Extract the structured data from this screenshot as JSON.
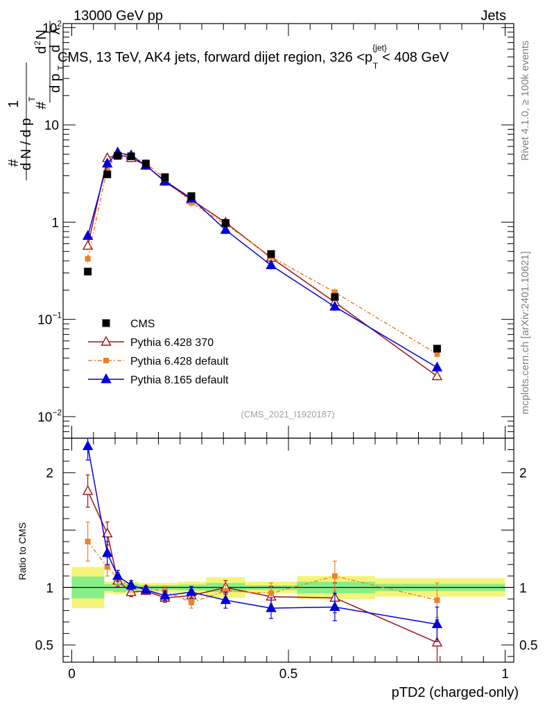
{
  "header": {
    "beam": "13000 GeV pp",
    "category": "Jets",
    "side_label_top": "Rivet 4.1.0, ≥ 100k events",
    "side_label_bottom": "mcplots.cern.ch [arXiv:2401.10621]",
    "analysis_id": "(CMS_2021_I1920187)"
  },
  "chart_data": {
    "type": "line",
    "title_parts": [
      "CMS, 13 TeV, AK4 jets, forward dijet region, 326 <p",
      "{jet}",
      "T",
      "< 408 GeV"
    ],
    "xlabel": "pTD2 (charged-only)",
    "ylabel_main": "1/(dN/dp_T) d²N/(dp_T dλ)",
    "ylabel_ratio": "Ratio to CMS",
    "xlim": [
      -0.02,
      1.02
    ],
    "ylim_main": [
      0.006,
      110
    ],
    "ylim_ratio": [
      0.35,
      2.3
    ],
    "x_ticks": [
      "0",
      "0.5",
      "1"
    ],
    "y_ticks_main": [
      {
        "v": 100,
        "m": "10",
        "e": "2"
      },
      {
        "v": 10,
        "m": "10",
        "e": ""
      },
      {
        "v": 1,
        "m": "1",
        "e": ""
      },
      {
        "v": 0.1,
        "m": "10",
        "e": "−1"
      },
      {
        "v": 0.01,
        "m": "10",
        "e": "−2"
      }
    ],
    "y_ticks_ratio": [
      {
        "v": 2,
        "label": "2"
      },
      {
        "v": 1,
        "label": "1"
      },
      {
        "v": 0.5,
        "label": "0.5"
      }
    ],
    "bins": [
      [
        0.0,
        0.075
      ],
      [
        0.075,
        0.095
      ],
      [
        0.095,
        0.125
      ],
      [
        0.125,
        0.155
      ],
      [
        0.155,
        0.19
      ],
      [
        0.19,
        0.245
      ],
      [
        0.245,
        0.31
      ],
      [
        0.31,
        0.4
      ],
      [
        0.4,
        0.52
      ],
      [
        0.52,
        0.7
      ],
      [
        0.7,
        1.0
      ]
    ],
    "x": [
      0.037,
      0.082,
      0.106,
      0.137,
      0.171,
      0.215,
      0.276,
      0.355,
      0.46,
      0.607,
      0.843
    ],
    "data": {
      "name": "CMS",
      "values": [
        0.31,
        3.1,
        4.8,
        4.75,
        4.0,
        2.9,
        1.85,
        0.98,
        0.47,
        0.17,
        0.05
      ],
      "band_inner": [
        0.095,
        0.03,
        0.04,
        0.03,
        0.02,
        0.02,
        0.025,
        0.04,
        0.02,
        0.05,
        0.03
      ],
      "band_outer": [
        0.18,
        0.05,
        0.06,
        0.05,
        0.04,
        0.04,
        0.05,
        0.09,
        0.05,
        0.1,
        0.08
      ]
    },
    "series": [
      {
        "name": "Pythia 6.428 370",
        "color": "#a01010",
        "marker": "triangle-open",
        "dash": "",
        "values": [
          0.57,
          4.55,
          4.95,
          4.55,
          3.85,
          2.6,
          1.7,
          0.99,
          0.43,
          0.15,
          0.026
        ],
        "ratio": [
          1.84,
          1.47,
          1.06,
          0.96,
          0.97,
          0.91,
          0.93,
          1.0,
          0.92,
          0.91,
          0.52
        ],
        "ratio_err": [
          0.14,
          0.1,
          0.05,
          0.04,
          0.03,
          0.04,
          0.05,
          0.06,
          0.09,
          0.13,
          0.2
        ]
      },
      {
        "name": "Pythia 6.428 default",
        "color": "#f0802a",
        "marker": "square-filled",
        "dash": "6,3,2,3",
        "values": [
          0.42,
          3.6,
          5.0,
          4.8,
          4.05,
          2.8,
          1.58,
          0.95,
          0.44,
          0.19,
          0.044
        ],
        "ratio": [
          1.4,
          1.18,
          1.08,
          1.0,
          0.99,
          0.97,
          0.87,
          0.97,
          0.95,
          1.1,
          0.89
        ],
        "ratio_err": [
          0.17,
          0.08,
          0.05,
          0.04,
          0.03,
          0.04,
          0.05,
          0.06,
          0.09,
          0.13,
          0.15
        ]
      },
      {
        "name": "Pythia 8.165 default",
        "color": "#0000dd",
        "marker": "triangle-filled",
        "dash": "",
        "values": [
          0.72,
          4.0,
          5.2,
          4.85,
          3.8,
          2.65,
          1.75,
          0.83,
          0.36,
          0.135,
          0.032
        ],
        "ratio": [
          2.23,
          1.3,
          1.1,
          1.02,
          0.98,
          0.93,
          0.96,
          0.89,
          0.82,
          0.83,
          0.68
        ],
        "ratio_err": [
          0.12,
          0.1,
          0.05,
          0.04,
          0.03,
          0.04,
          0.05,
          0.07,
          0.09,
          0.12,
          0.15
        ]
      }
    ],
    "legend_position": "lower-left",
    "band_colors": {
      "inner": "#88ee88",
      "outer": "#f4f47a"
    }
  }
}
